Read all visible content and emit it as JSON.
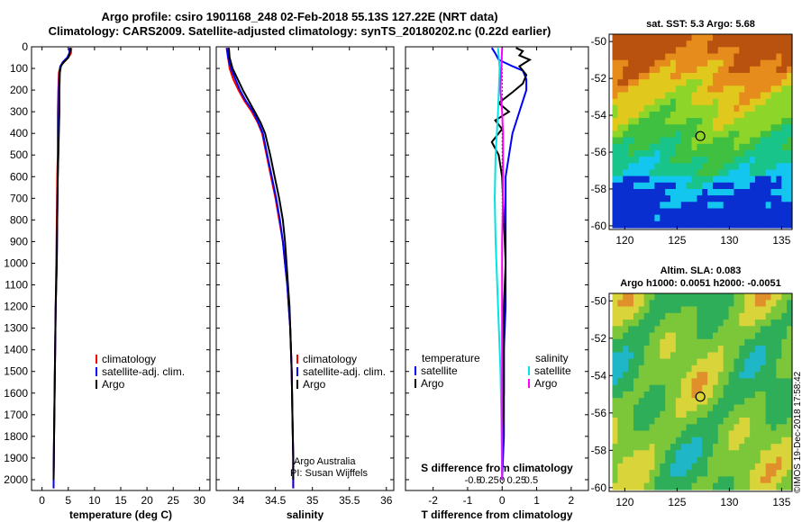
{
  "title": {
    "line1": "Argo profile: csiro 1901168_248 02-Feb-2018 55.13S 127.22E (NRT data)",
    "line2": "Climatology: CARS2009. Satellite-adjusted climatology: synTS_20180202.nc (0.22d earlier)"
  },
  "colors": {
    "climatology": "#ff0000",
    "satellite": "#0000ff",
    "argo": "#000000",
    "sat_salinity": "#00e5e5",
    "argo_salinity_diff": "#ff00ff"
  },
  "credit": {
    "line1": "Argo Australia",
    "line2": "PI: Susan Wijffels"
  },
  "imos_stamp": "©IMOS 19-Dec-2018 17:58:42",
  "chart_data": [
    {
      "type": "line",
      "panel": "temperature",
      "xlabel": "temperature (deg C)",
      "ylabel": "",
      "xlim": [
        -2,
        32
      ],
      "ylim": [
        2050,
        0
      ],
      "xticks": [
        0,
        5,
        10,
        15,
        20,
        25,
        30
      ],
      "yticks": [
        0,
        100,
        200,
        300,
        400,
        500,
        600,
        700,
        800,
        900,
        1000,
        1100,
        1200,
        1300,
        1400,
        1500,
        1600,
        1700,
        1800,
        1900,
        2000
      ],
      "legend": [
        "climatology",
        "satellite-adj. clim.",
        "Argo"
      ],
      "series": [
        {
          "name": "climatology",
          "color": "#ff0000",
          "points": [
            [
              5.6,
              5
            ],
            [
              5.5,
              30
            ],
            [
              5.0,
              50
            ],
            [
              4.2,
              70
            ],
            [
              3.5,
              90
            ],
            [
              3.2,
              120
            ],
            [
              3.1,
              200
            ],
            [
              3.0,
              300
            ],
            [
              3.0,
              400
            ],
            [
              3.0,
              500
            ],
            [
              2.9,
              600
            ],
            [
              2.8,
              800
            ],
            [
              2.7,
              1000
            ],
            [
              2.6,
              1200
            ],
            [
              2.5,
              1400
            ],
            [
              2.4,
              1600
            ],
            [
              2.3,
              1800
            ],
            [
              2.2,
              2000
            ],
            [
              2.2,
              2040
            ]
          ]
        },
        {
          "name": "satellite-adj. clim.",
          "color": "#0000ff",
          "points": [
            [
              5.3,
              5
            ],
            [
              5.2,
              30
            ],
            [
              4.8,
              50
            ],
            [
              4.0,
              70
            ],
            [
              3.5,
              90
            ],
            [
              3.3,
              120
            ],
            [
              3.2,
              200
            ],
            [
              3.2,
              300
            ],
            [
              3.1,
              400
            ],
            [
              3.1,
              500
            ],
            [
              3.0,
              600
            ],
            [
              2.9,
              800
            ],
            [
              2.8,
              1000
            ],
            [
              2.6,
              1200
            ],
            [
              2.5,
              1400
            ],
            [
              2.4,
              1600
            ],
            [
              2.3,
              1800
            ],
            [
              2.2,
              2000
            ],
            [
              2.2,
              2040
            ]
          ]
        },
        {
          "name": "Argo",
          "color": "#000000",
          "points": [
            [
              5.4,
              5
            ],
            [
              5.3,
              30
            ],
            [
              5.0,
              50
            ],
            [
              4.6,
              60
            ],
            [
              4.0,
              75
            ],
            [
              3.6,
              90
            ],
            [
              3.4,
              120
            ],
            [
              3.3,
              200
            ],
            [
              3.3,
              300
            ],
            [
              3.2,
              400
            ],
            [
              3.1,
              500
            ],
            [
              3.0,
              600
            ],
            [
              2.9,
              800
            ],
            [
              2.8,
              1000
            ],
            [
              2.6,
              1200
            ],
            [
              2.5,
              1400
            ],
            [
              2.4,
              1600
            ],
            [
              2.3,
              1800
            ],
            [
              2.2,
              2000
            ]
          ]
        }
      ]
    },
    {
      "type": "line",
      "panel": "salinity",
      "xlabel": "salinity",
      "ylabel": "",
      "xlim": [
        33.7,
        36.1
      ],
      "ylim": [
        2050,
        0
      ],
      "xticks": [
        34,
        34.5,
        35,
        35.5,
        36
      ],
      "legend": [
        "climatology",
        "satellite-adj. clim.",
        "Argo"
      ],
      "series": [
        {
          "name": "climatology",
          "color": "#ff0000",
          "points": [
            [
              33.85,
              5
            ],
            [
              33.86,
              50
            ],
            [
              33.88,
              100
            ],
            [
              33.93,
              150
            ],
            [
              34.0,
              200
            ],
            [
              34.08,
              250
            ],
            [
              34.18,
              300
            ],
            [
              34.26,
              350
            ],
            [
              34.32,
              400
            ],
            [
              34.38,
              500
            ],
            [
              34.44,
              600
            ],
            [
              34.5,
              700
            ],
            [
              34.55,
              800
            ],
            [
              34.6,
              900
            ],
            [
              34.63,
              1000
            ],
            [
              34.66,
              1100
            ],
            [
              34.68,
              1200
            ],
            [
              34.7,
              1300
            ],
            [
              34.71,
              1400
            ],
            [
              34.72,
              1500
            ],
            [
              34.73,
              1700
            ],
            [
              34.74,
              1900
            ],
            [
              34.74,
              2040
            ]
          ]
        },
        {
          "name": "satellite-adj. clim.",
          "color": "#0000ff",
          "points": [
            [
              33.84,
              5
            ],
            [
              33.86,
              50
            ],
            [
              33.9,
              100
            ],
            [
              33.96,
              150
            ],
            [
              34.02,
              200
            ],
            [
              34.1,
              250
            ],
            [
              34.2,
              300
            ],
            [
              34.27,
              350
            ],
            [
              34.33,
              400
            ],
            [
              34.39,
              500
            ],
            [
              34.45,
              600
            ],
            [
              34.51,
              700
            ],
            [
              34.56,
              800
            ],
            [
              34.6,
              900
            ],
            [
              34.63,
              1000
            ],
            [
              34.66,
              1100
            ],
            [
              34.68,
              1200
            ],
            [
              34.7,
              1300
            ],
            [
              34.71,
              1400
            ],
            [
              34.72,
              1500
            ],
            [
              34.73,
              1700
            ],
            [
              34.74,
              1900
            ],
            [
              34.74,
              2040
            ]
          ]
        },
        {
          "name": "Argo",
          "color": "#000000",
          "points": [
            [
              33.87,
              5
            ],
            [
              33.88,
              50
            ],
            [
              33.92,
              100
            ],
            [
              33.99,
              150
            ],
            [
              34.06,
              200
            ],
            [
              34.14,
              250
            ],
            [
              34.22,
              300
            ],
            [
              34.3,
              350
            ],
            [
              34.36,
              400
            ],
            [
              34.43,
              500
            ],
            [
              34.49,
              600
            ],
            [
              34.55,
              700
            ],
            [
              34.6,
              800
            ],
            [
              34.63,
              900
            ],
            [
              34.65,
              1000
            ],
            [
              34.67,
              1100
            ],
            [
              34.69,
              1200
            ],
            [
              34.7,
              1300
            ],
            [
              34.71,
              1400
            ],
            [
              34.72,
              1500
            ],
            [
              34.73,
              1700
            ],
            [
              34.74,
              1900
            ],
            [
              34.74,
              2000
            ]
          ]
        }
      ]
    },
    {
      "type": "line",
      "panel": "difference",
      "xlabel": "T difference from climatology",
      "xlabel2": "S difference from climatology",
      "xlim": [
        -2.8,
        2.5
      ],
      "xticks": [
        -2,
        -1,
        0,
        1,
        2
      ],
      "xticks_s": [
        "-0.5",
        "-0.25",
        "0",
        "0.25",
        "0.5"
      ],
      "ylim": [
        2050,
        0
      ],
      "legend_temperature": {
        "title": "temperature",
        "items": [
          "satellite",
          "Argo"
        ]
      },
      "legend_salinity": {
        "title": "salinity",
        "items": [
          "satellite",
          "Argo"
        ]
      },
      "series": [
        {
          "name": "temperature satellite",
          "color": "#0000ff",
          "points": [
            [
              -0.3,
              5
            ],
            [
              -0.2,
              30
            ],
            [
              -0.1,
              60
            ],
            [
              0.3,
              90
            ],
            [
              0.6,
              110
            ],
            [
              0.7,
              150
            ],
            [
              0.7,
              200
            ],
            [
              0.5,
              300
            ],
            [
              0.3,
              400
            ],
            [
              0.2,
              500
            ],
            [
              0.1,
              600
            ],
            [
              0.1,
              800
            ],
            [
              0.1,
              1000
            ],
            [
              0.1,
              1200
            ],
            [
              0.05,
              1400
            ],
            [
              0.05,
              1600
            ],
            [
              0.05,
              1800
            ],
            [
              0.0,
              2000
            ]
          ]
        },
        {
          "name": "temperature Argo",
          "color": "#000000",
          "points": [
            [
              0.4,
              5
            ],
            [
              0.6,
              20
            ],
            [
              0.5,
              40
            ],
            [
              0.8,
              60
            ],
            [
              0.5,
              90
            ],
            [
              0.7,
              130
            ],
            [
              0.6,
              170
            ],
            [
              0.3,
              210
            ],
            [
              -0.1,
              260
            ],
            [
              0.2,
              300
            ],
            [
              -0.2,
              340
            ],
            [
              0.0,
              380
            ],
            [
              -0.3,
              440
            ],
            [
              -0.1,
              500
            ],
            [
              0.0,
              600
            ],
            [
              0.05,
              800
            ],
            [
              0.1,
              1000
            ],
            [
              0.05,
              1200
            ],
            [
              0.05,
              1400
            ],
            [
              0.05,
              1600
            ],
            [
              0.0,
              1800
            ],
            [
              0.0,
              2000
            ]
          ]
        },
        {
          "name": "salinity satellite",
          "color": "#00e5e5",
          "points": [
            [
              -0.05,
              5
            ],
            [
              -0.03,
              100
            ],
            [
              -0.05,
              300
            ],
            [
              -0.08,
              500
            ],
            [
              -0.09,
              700
            ],
            [
              -0.08,
              900
            ],
            [
              -0.06,
              1100
            ],
            [
              -0.04,
              1300
            ],
            [
              -0.02,
              1500
            ],
            [
              -0.01,
              1700
            ],
            [
              0.0,
              2000
            ]
          ]
        },
        {
          "name": "salinity Argo",
          "color": "#ff00ff",
          "points": [
            [
              0.0,
              5
            ],
            [
              -0.01,
              100
            ],
            [
              -0.02,
              200
            ],
            [
              0.0,
              300
            ],
            [
              0.01,
              400
            ],
            [
              0.01,
              500
            ],
            [
              0.01,
              700
            ],
            [
              0.0,
              900
            ],
            [
              0.0,
              1100
            ],
            [
              0.0,
              1300
            ],
            [
              0.0,
              1500
            ],
            [
              0.0,
              1700
            ],
            [
              0.0,
              2000
            ]
          ]
        }
      ]
    },
    {
      "type": "heatmap",
      "panel": "sst_map",
      "title": "sat. SST: 5.3 Argo: 5.68",
      "xlim": [
        118.5,
        136
      ],
      "ylim": [
        -60.2,
        -49.6
      ],
      "xticks": [
        120,
        125,
        130,
        135
      ],
      "yticks": [
        -50,
        -52,
        -54,
        -56,
        -58,
        -60
      ],
      "argo_position": [
        127.22,
        -55.13
      ]
    },
    {
      "type": "heatmap",
      "panel": "sla_map",
      "title": "Altim. SLA: 0.083",
      "subtitle": "Argo h1000: 0.0051 h2000: -0.0051",
      "xlim": [
        118.5,
        136
      ],
      "ylim": [
        -60.2,
        -49.6
      ],
      "xticks": [
        120,
        125,
        130,
        135
      ],
      "yticks": [
        -50,
        -52,
        -54,
        -56,
        -58,
        -60
      ],
      "argo_position": [
        127.22,
        -55.13
      ]
    }
  ]
}
